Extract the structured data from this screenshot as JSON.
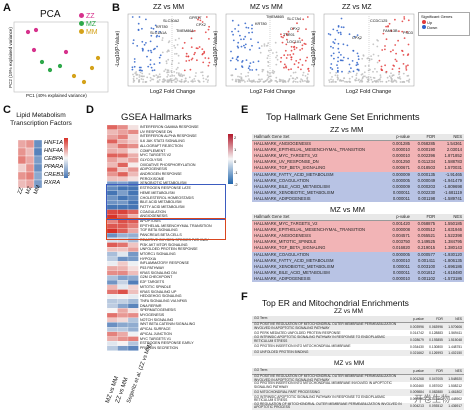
{
  "panels": {
    "A": "A",
    "B": "B",
    "C": "C",
    "D": "D",
    "E": "E",
    "F": "F"
  },
  "pca": {
    "title": "PCA",
    "xlabel": "PC1 (40% explained variance)",
    "ylabel": "PC2 (19% explained variance)",
    "legend": [
      {
        "name": "ZZ",
        "color": "#d6318c"
      },
      {
        "name": "MZ",
        "color": "#2ea84a"
      },
      {
        "name": "MM",
        "color": "#d4a21a"
      }
    ]
  },
  "volcano": {
    "xlabel": "Log2 Fold Change",
    "ylabel": "-Log10(P-Value)",
    "plots": [
      {
        "title": "ZZ vs MM",
        "labels": [
          "SLC30A2",
          "KRT80",
          "TMEM86A",
          "GPR37",
          "CPX2",
          "SLC1A1A"
        ]
      },
      {
        "title": "MZ vs MM",
        "labels": [
          "TMEM86B",
          "SLC7A4",
          "KRT80",
          "CPX2",
          "TYR01",
          "LOC101"
        ]
      },
      {
        "title": "ZZ vs MZ",
        "labels": [
          "CCDC125",
          "FAM13B",
          "PSD3",
          "CPX2"
        ]
      }
    ],
    "legend": {
      "title": "Significant Genes",
      "up": "Up",
      "down": "Down"
    }
  },
  "lipid": {
    "title": "Lipid Metabolism Transcription Factors",
    "genes": [
      "HNF1A",
      "HNF4A",
      "CEBPA",
      "PPARA",
      "CREB3L3",
      "RXRA"
    ],
    "cols": [
      "ZZ",
      "MZ",
      "MM"
    ]
  },
  "gsea": {
    "title": "GSEA Hallmarks",
    "cols": [
      "MZ vs MM",
      "ZZ vs MM",
      "Segeritz et al. (ZZ vs MM)"
    ],
    "terms": [
      "INTERFERON GAMMA RESPONSE",
      "UV RESPONSE DN",
      "INTERFERON ALPHA RESPONSE",
      "IL6 JAK STAT3 SIGNALING",
      "ALLOGRAFT REJECTION",
      "COMPLEMENT",
      "MYC TARGETS V2",
      "GLYCOLYSIS",
      "OXIDATIVE PHOSPHORYLATION",
      "ADIPOGENESIS",
      "ANDROGEN RESPONSE",
      "PEROXISOME",
      "XENOBIOTIC METABOLISM",
      "ESTROGEN RESPONSE LATE",
      "HEME METABOLISM",
      "CHOLESTEROL HOMEOSTASIS",
      "BILE ACID METABOLISM",
      "FATTY ACID METABOLISM",
      "COAGULATION",
      "ANGIOGENESIS",
      "APOPTOSIS",
      "EPITHELIAL MESENCHYMAL TRANSITION",
      "TGF BETA SIGNALING",
      "PANCREAS BETA CELLS",
      "REACTIVE OXYGEN SPECIES PATHWAY",
      "PI3K AKT MTOR SIGNALING",
      "UNFOLDED PROTEIN RESPONSE",
      "MTORC1 SIGNALING",
      "HYPOXIA",
      "INFLAMMATORY RESPONSE",
      "P53 PATHWAY",
      "KRAS SIGNALING DN",
      "G2M CHECKPOINT",
      "E2F TARGETS",
      "MITOTIC SPINDLE",
      "KRAS SIGNALING UP",
      "HEDGEHOG SIGNALING",
      "TNFA SIGNALING VIA NFKB",
      "DNA REPAIR",
      "SPERMATOGENESIS",
      "MYOGENESIS",
      "NOTCH SIGNALING",
      "WNT BETA CATENIN SIGNALING",
      "APICAL SURFACE",
      "APICAL JUNCTION",
      "MYC TARGETS V1",
      "ESTROGEN RESPONSE EARLY",
      "PROTEIN SECRETION"
    ],
    "scale": [
      "2",
      "1",
      "0",
      "-1",
      "-2"
    ]
  },
  "hallmark": {
    "title": "Top Hallmark Gene Set Enrichments",
    "headers": [
      "Hallmark Gene Set",
      "p-value",
      "FDR",
      "NES"
    ],
    "t1": {
      "title": "ZZ vs MM",
      "rows": [
        [
          "HALLMARK_ANGIOGENESIS",
          "0.001285",
          "0.058285",
          "1.54361"
        ],
        [
          "HALLMARK_EPITHELIAL_MESENCHYMAL_TRANSITION",
          "0.000010",
          "0.000190",
          "2.03014"
        ],
        [
          "HALLMARK_MYC_TARGETS_V2",
          "0.000010",
          "0.002396",
          "1.871852"
        ],
        [
          "HALLMARK_UV_RESPONSE_DN",
          "0.001250",
          "0.011234",
          "1.588783"
        ],
        [
          "HALLMARK_TGF_BETA_SIGNALING",
          "0.000671",
          "0.018503",
          "1.570031"
        ],
        [
          "HALLMARK_FATTY_ACID_METABOLISM",
          "0.000009",
          "0.000135",
          "-1.91465"
        ],
        [
          "HALLMARK_COAGULATION",
          "0.000005",
          "0.000049",
          "-1.941479"
        ],
        [
          "HALLMARK_BILE_ACID_METABOLISM",
          "0.000009",
          "0.000203",
          "-1.809698"
        ],
        [
          "HALLMARK_XENOBIOTIC_METABOLISM",
          "0.000011",
          "0.002230",
          "-1.681119"
        ],
        [
          "HALLMARK_ADIPOGENESIS",
          "0.000011",
          "0.001198",
          "-1.589741"
        ]
      ]
    },
    "t2": {
      "title": "MZ vs MM",
      "rows": [
        [
          "HALLMARK_MYC_TARGETS_V2",
          "0.001420",
          "0.058875",
          "1.550185"
        ],
        [
          "HALLMARK_EPITHELIAL_MESENCHYMAL_TRANSITION",
          "0.000008",
          "0.000512",
          "1.631946"
        ],
        [
          "HALLMARK_ANGIOGENESIS",
          "0.004571",
          "0.055521",
          "1.522398"
        ],
        [
          "HALLMARK_MITOTIC_SPINDLE",
          "0.003750",
          "0.149525",
          "1.384795"
        ],
        [
          "HALLMARK_TGF_BETA_SIGNALING",
          "0.016820",
          "0.219015",
          "1.380143"
        ],
        [
          "HALLMARK_COAGULATION",
          "0.000005",
          "0.000577",
          "-1.930120"
        ],
        [
          "HALLMARK_FATTY_ACID_METABOLISM",
          "0.000010",
          "0.001411",
          "-1.806135"
        ],
        [
          "HALLMARK_XENOBIOTIC_METABOLISM",
          "0.000011",
          "0.003100",
          "-1.696186"
        ],
        [
          "HALLMARK_BILE_ACID_METABOLISM",
          "0.000011",
          "0.001812",
          "-1.618480"
        ],
        [
          "HALLMARK_ADIPOGENESIS",
          "0.000010",
          "0.001102",
          "-1.573186"
        ]
      ]
    }
  },
  "er": {
    "title": "Top ER and Mitochondrial Enrichments",
    "headers": [
      "GO Term",
      "p-value",
      "FDR",
      "NES"
    ],
    "t1": {
      "title": "ZZ vs MM",
      "rows": [
        [
          "GO POSITIVE REGULATION OF MITOCHONDRIAL OUTER MEMBRANE PERMEABILIZATION INVOLVED IN APOPTOTIC SIGNALING PATHWAY",
          "0.003996",
          "0.063996",
          "1.570606"
        ],
        [
          "GO PERK MEDIATED UNFOLDED PROTEIN RESPONSE",
          "0.014742",
          "0.128883",
          "1.569411"
        ],
        [
          "GO INTRINSIC APOPTOTIC SIGNALING PATHWAY IN RESPONSE TO ENDOPLASMIC RETICULUM STRESS",
          "0.028679",
          "0.193855",
          "1.515048"
        ],
        [
          "GO PROTEIN INSERTION INTO MITOCHONDRIAL MEMBRANE",
          "0.034430",
          "0.130800",
          "1.448751"
        ],
        [
          "GO UNFOLDED PROTEIN BINDING",
          "0.021662",
          "0.126993",
          "1.402150"
        ]
      ]
    },
    "t2": {
      "title": "MZ vs MM",
      "rows": [
        [
          "GO POSITIVE REGULATION OF MITOCHONDRIAL OUTER MEMBRANE PERMEABILIZATION INVOLVED IN APOPTOTIC SIGNALING PATHWAY",
          "0.001268",
          "0.047005",
          "1.548920"
        ],
        [
          "GO PROTEIN INSERTION INTO MITOCHONDRIAL MEMBRANE INVOLVED IN APOPTOTIC SIGNALING PATHWAY",
          "0.002460",
          "0.057002",
          "1.508212"
        ],
        [
          "GO MITOCHONDRIAL PART PROCESSING",
          "0.009884",
          "0.082880",
          "1.461802"
        ],
        [
          "GO INTRINSIC APOPTOTIC SIGNALING PATHWAY IN RESPONSE TO ENDOPLASMIC RETICULUM STRESS",
          "0.007281",
          "0.071562",
          "1.448902"
        ],
        [
          "GO REGULATION OF MITOCHONDRIAL OUTER MEMBRANE PERMEABILIZATION INVOLVED IN APOPTOTIC PROCESS",
          "0.004213",
          "0.093512",
          "1.436917"
        ]
      ]
    }
  },
  "watermark": "开卷生物"
}
